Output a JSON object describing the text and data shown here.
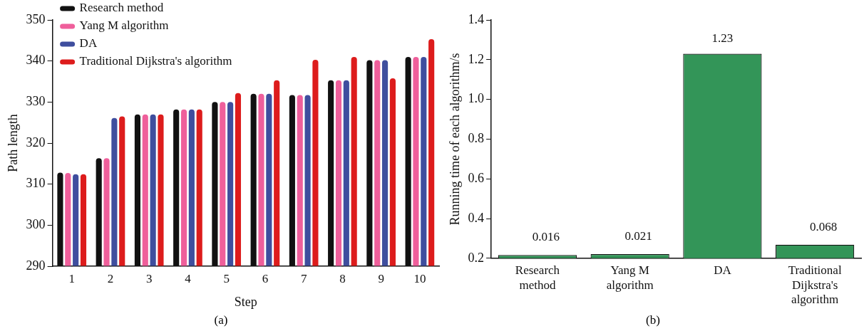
{
  "chart_data": [
    {
      "type": "bar",
      "categories": [
        "1",
        "2",
        "3",
        "4",
        "5",
        "6",
        "7",
        "8",
        "9",
        "10"
      ],
      "xlabel": "Step",
      "ylabel": "Path length",
      "ylim": [
        290,
        350
      ],
      "yticks": [
        290,
        300,
        310,
        320,
        330,
        340,
        350
      ],
      "grid": false,
      "legend": "top left",
      "annotations": [
        "(a)"
      ],
      "series": [
        {
          "name": "Research method",
          "color": "#111111",
          "values": [
            312.8,
            316.3,
            327.0,
            328.2,
            330.0,
            332.0,
            331.7,
            335.3,
            340.2,
            341.0
          ]
        },
        {
          "name": "Yang M algorithm",
          "color": "#ef5f9b",
          "values": [
            312.7,
            316.3,
            327.0,
            328.2,
            330.0,
            332.0,
            331.7,
            335.3,
            340.2,
            341.0
          ]
        },
        {
          "name": "DA",
          "color": "#3f4e9e",
          "values": [
            312.4,
            326.1,
            327.0,
            328.2,
            330.0,
            332.0,
            331.7,
            335.3,
            340.2,
            341.0
          ]
        },
        {
          "name": "Traditional Dijkstra's algorithm",
          "color": "#dd1c1c",
          "values": [
            312.4,
            326.5,
            327.0,
            328.2,
            332.2,
            335.3,
            340.3,
            341.0,
            335.8,
            345.3
          ]
        }
      ]
    },
    {
      "type": "bar",
      "categories": [
        "Research method",
        "Yang M algorithm",
        "DA",
        "Traditional Dijkstra's algorithm"
      ],
      "ylabel": "Running time of each algorithm/s",
      "ylim": [
        0.2,
        1.4
      ],
      "yticks": [
        {
          "value": 0.2,
          "label": "0.2"
        },
        {
          "value": 0.4,
          "label": "0.4"
        },
        {
          "value": 0.6,
          "label": "0.6"
        },
        {
          "value": 0.8,
          "label": "0.8"
        },
        {
          "value": 1.0,
          "label": "1.0"
        },
        {
          "value": 1.2,
          "label": "1.2"
        },
        {
          "value": 1.4,
          "label": "1.4"
        }
      ],
      "grid": false,
      "annotations": [
        "(b)"
      ],
      "values": [
        0.016,
        0.021,
        1.23,
        0.068
      ],
      "base": [
        0.2,
        0.2,
        0,
        0.2
      ],
      "color": "#339558",
      "data_labels": true
    }
  ]
}
